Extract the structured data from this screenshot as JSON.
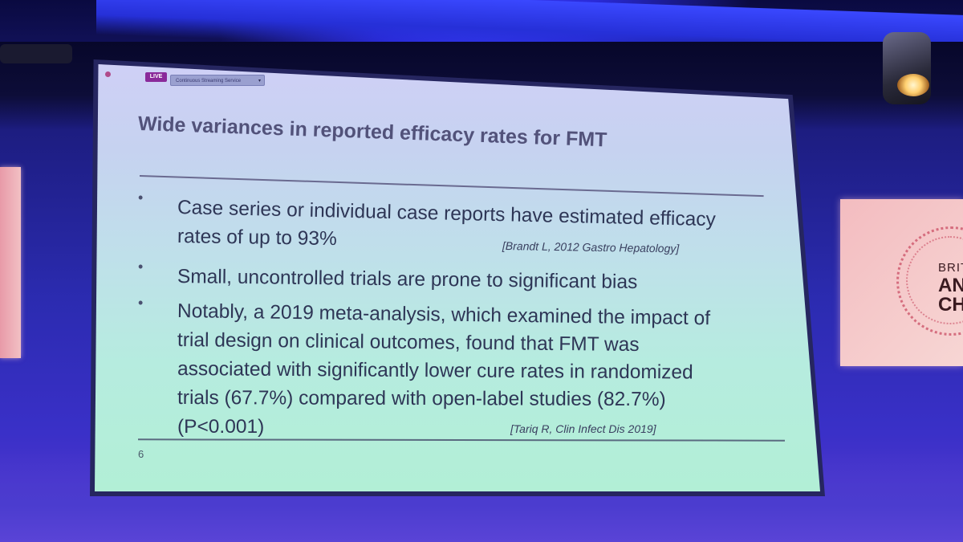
{
  "stream_ui": {
    "live_badge": "LIVE",
    "stream_selector": "Continuous Streaming Service"
  },
  "slide": {
    "title": "Wide variances in reported efficacy rates for FMT",
    "bullets": [
      {
        "lines": [
          "Case series or individual case reports have estimated efficacy",
          "rates of up to 93%"
        ],
        "citation": "[Brandt L, 2012 Gastro Hepatology]"
      },
      {
        "lines": [
          "Small, uncontrolled trials are prone to significant bias"
        ],
        "citation": ""
      },
      {
        "lines": [
          "Notably, a 2019 meta-analysis, which examined the impact of",
          "trial design on clinical outcomes, found that FMT was",
          "associated with significantly lower cure rates in randomized",
          "trials (67.7%) compared with open-label studies (82.7%)",
          "(P<0.001)"
        ],
        "citation": "[Tariq R, Clin Infect Dis 2019]"
      }
    ],
    "bullet_glyph": "•",
    "page_number": "6"
  },
  "venue_sign": {
    "line1": "BRIT",
    "line2": "AN",
    "line3": "CH"
  },
  "colors": {
    "stage_blue": "#2b2bb0",
    "slide_title": "#52527a",
    "slide_text": "#2e3656",
    "sign_pink": "#f3bcc0"
  }
}
